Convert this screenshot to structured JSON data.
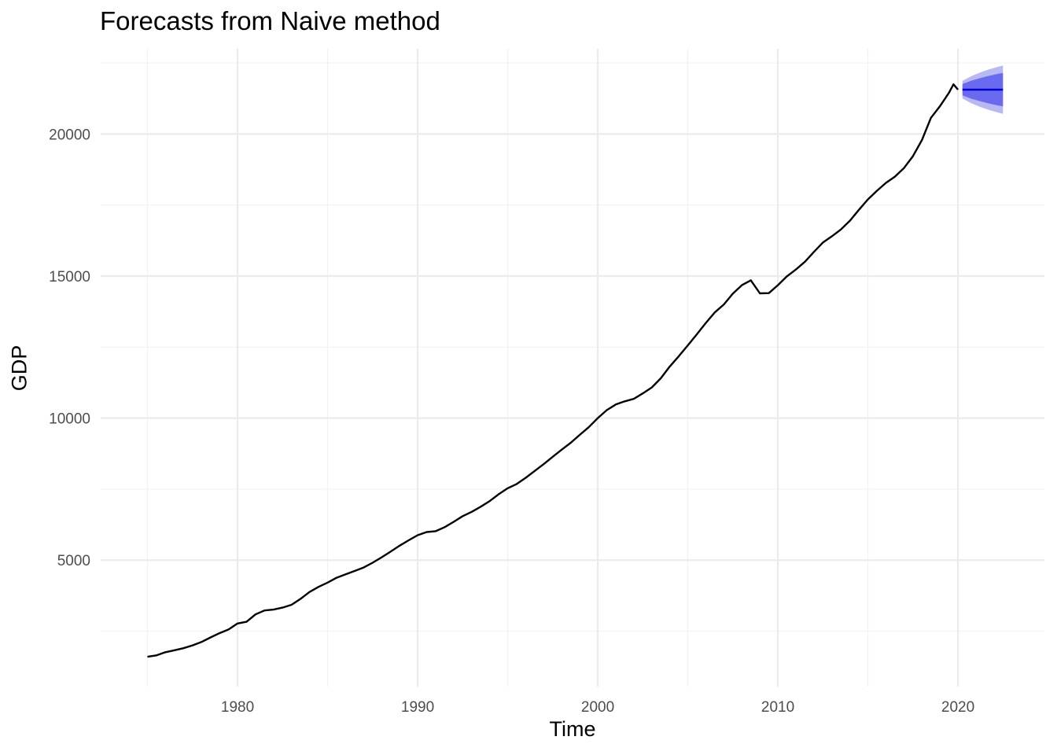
{
  "chart_data": {
    "type": "line",
    "title": "Forecasts from Naive method",
    "xlabel": "Time",
    "ylabel": "GDP",
    "xlim": [
      1972.4,
      2024.8
    ],
    "ylim": [
      550,
      23000
    ],
    "xticks": [
      1980,
      1990,
      2000,
      2010,
      2020
    ],
    "xtick_labels": [
      "1980",
      "1990",
      "2000",
      "2010",
      "2020"
    ],
    "yticks": [
      5000,
      10000,
      15000,
      20000
    ],
    "ytick_labels": [
      "5000",
      "10000",
      "15000",
      "20000"
    ],
    "grid": true,
    "legend": "none",
    "series": [
      {
        "points": [
          [
            1975.0,
            1600
          ],
          [
            1975.5,
            1650
          ],
          [
            1976.0,
            1760
          ],
          [
            1976.5,
            1830
          ],
          [
            1977.0,
            1900
          ],
          [
            1977.5,
            2000
          ],
          [
            1978.0,
            2120
          ],
          [
            1978.5,
            2280
          ],
          [
            1979.0,
            2430
          ],
          [
            1979.5,
            2560
          ],
          [
            1980.0,
            2770
          ],
          [
            1980.5,
            2830
          ],
          [
            1981.0,
            3090
          ],
          [
            1981.5,
            3230
          ],
          [
            1982.0,
            3260
          ],
          [
            1982.5,
            3330
          ],
          [
            1983.0,
            3430
          ],
          [
            1983.5,
            3640
          ],
          [
            1984.0,
            3880
          ],
          [
            1984.5,
            4060
          ],
          [
            1985.0,
            4210
          ],
          [
            1985.5,
            4380
          ],
          [
            1986.0,
            4500
          ],
          [
            1986.5,
            4620
          ],
          [
            1987.0,
            4740
          ],
          [
            1987.5,
            4910
          ],
          [
            1988.0,
            5100
          ],
          [
            1988.5,
            5300
          ],
          [
            1989.0,
            5510
          ],
          [
            1989.5,
            5700
          ],
          [
            1990.0,
            5880
          ],
          [
            1990.5,
            5990
          ],
          [
            1991.0,
            6020
          ],
          [
            1991.5,
            6160
          ],
          [
            1992.0,
            6350
          ],
          [
            1992.5,
            6550
          ],
          [
            1993.0,
            6700
          ],
          [
            1993.5,
            6880
          ],
          [
            1994.0,
            7080
          ],
          [
            1994.5,
            7320
          ],
          [
            1995.0,
            7530
          ],
          [
            1995.5,
            7680
          ],
          [
            1996.0,
            7900
          ],
          [
            1996.5,
            8140
          ],
          [
            1997.0,
            8380
          ],
          [
            1997.5,
            8640
          ],
          [
            1998.0,
            8890
          ],
          [
            1998.5,
            9130
          ],
          [
            1999.0,
            9410
          ],
          [
            1999.5,
            9680
          ],
          [
            2000.0,
            10000
          ],
          [
            2000.5,
            10280
          ],
          [
            2001.0,
            10480
          ],
          [
            2001.5,
            10590
          ],
          [
            2002.0,
            10680
          ],
          [
            2002.5,
            10870
          ],
          [
            2003.0,
            11080
          ],
          [
            2003.5,
            11400
          ],
          [
            2004.0,
            11820
          ],
          [
            2004.5,
            12180
          ],
          [
            2005.0,
            12560
          ],
          [
            2005.5,
            12950
          ],
          [
            2006.0,
            13350
          ],
          [
            2006.5,
            13720
          ],
          [
            2007.0,
            14000
          ],
          [
            2007.5,
            14380
          ],
          [
            2008.0,
            14680
          ],
          [
            2008.5,
            14850
          ],
          [
            2009.0,
            14390
          ],
          [
            2009.5,
            14400
          ],
          [
            2010.0,
            14680
          ],
          [
            2010.5,
            14990
          ],
          [
            2011.0,
            15230
          ],
          [
            2011.5,
            15500
          ],
          [
            2012.0,
            15850
          ],
          [
            2012.5,
            16180
          ],
          [
            2013.0,
            16400
          ],
          [
            2013.5,
            16640
          ],
          [
            2014.0,
            16950
          ],
          [
            2014.5,
            17330
          ],
          [
            2015.0,
            17700
          ],
          [
            2015.5,
            18000
          ],
          [
            2016.0,
            18280
          ],
          [
            2016.5,
            18500
          ],
          [
            2017.0,
            18800
          ],
          [
            2017.5,
            19220
          ],
          [
            2018.0,
            19790
          ],
          [
            2018.5,
            20570
          ],
          [
            2019.0,
            20980
          ],
          [
            2019.5,
            21450
          ],
          [
            2019.75,
            21750
          ],
          [
            2020.0,
            21560
          ]
        ]
      }
    ],
    "forecast": {
      "x": [
        2020.25,
        2020.75,
        2021.25,
        2021.75,
        2022.25,
        2022.5
      ],
      "mean": [
        21560,
        21560,
        21560,
        21560,
        21560,
        21560
      ],
      "lo80": [
        21360,
        21240,
        21150,
        21070,
        21000,
        20970
      ],
      "hi80": [
        21760,
        21880,
        21970,
        22050,
        22120,
        22150
      ],
      "lo95": [
        21250,
        21080,
        20950,
        20840,
        20750,
        20710
      ],
      "hi95": [
        21870,
        22040,
        22170,
        22280,
        22370,
        22410
      ]
    },
    "colors": {
      "series": "#000000",
      "mean": "#0000cc",
      "band80": "#6a6af0",
      "band95": "#b8b8f2",
      "grid_major": "#ebebeb",
      "grid_minor": "#f2f2f2",
      "tick_text": "#4d4d4d"
    }
  }
}
